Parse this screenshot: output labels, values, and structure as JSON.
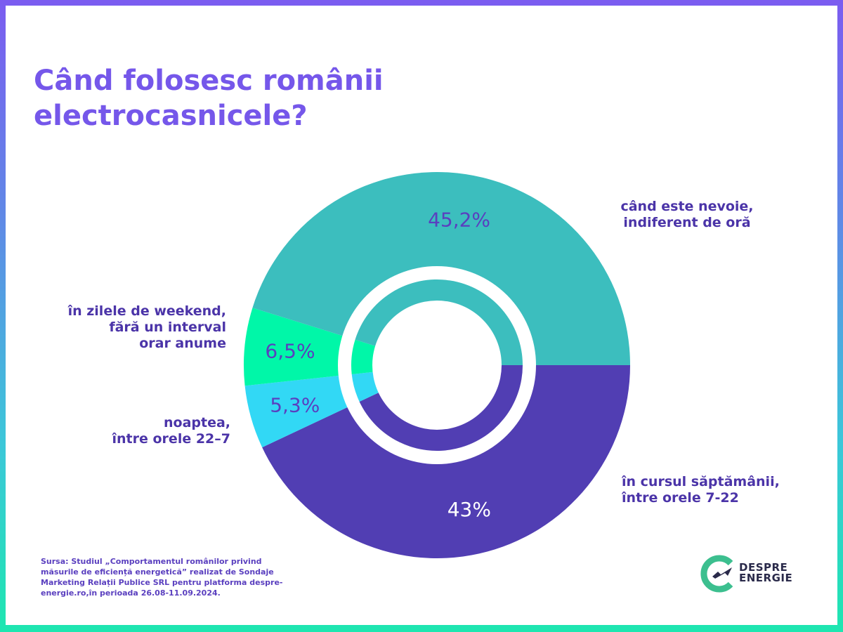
{
  "title": "Când folosesc românii electrocasnicele?",
  "source": "Sursa: Studiul „Comportamentul românilor privind măsurile de eficiență energetică” realizat de Sondaje Marketing Relații Publice SRL pentru platforma despre-energie.ro,în perioada 26.08-11.09.2024.",
  "logo": {
    "line1": "DESPRE",
    "line2": "ENERGIE"
  },
  "chart_data": {
    "type": "pie",
    "variant": "donut",
    "title": "Când folosesc românii electrocasnicele?",
    "slices": [
      {
        "label": "în cursul săptămânii,\nîntre orele 7-22",
        "value": 43,
        "value_label": "43%",
        "color": "#513eb3",
        "label_color": "#ffffff"
      },
      {
        "label": "noaptea,\nîntre orele 22–7",
        "value": 5.3,
        "value_label": "5,3%",
        "color": "#32d8f5",
        "label_color": "#5a3fbf"
      },
      {
        "label": "în zilele de weekend,\nfără un interval\norar anume",
        "value": 6.5,
        "value_label": "6,5%",
        "color": "#00f7a8",
        "label_color": "#5a3fbf"
      },
      {
        "label": "când este nevoie,\nindiferent de oră",
        "value": 45.2,
        "value_label": "45,2%",
        "color": "#3cbebe",
        "label_color": "#5a3fbf"
      }
    ],
    "start_angle_deg": 90,
    "direction": "clockwise",
    "legend": "labels-outside"
  }
}
